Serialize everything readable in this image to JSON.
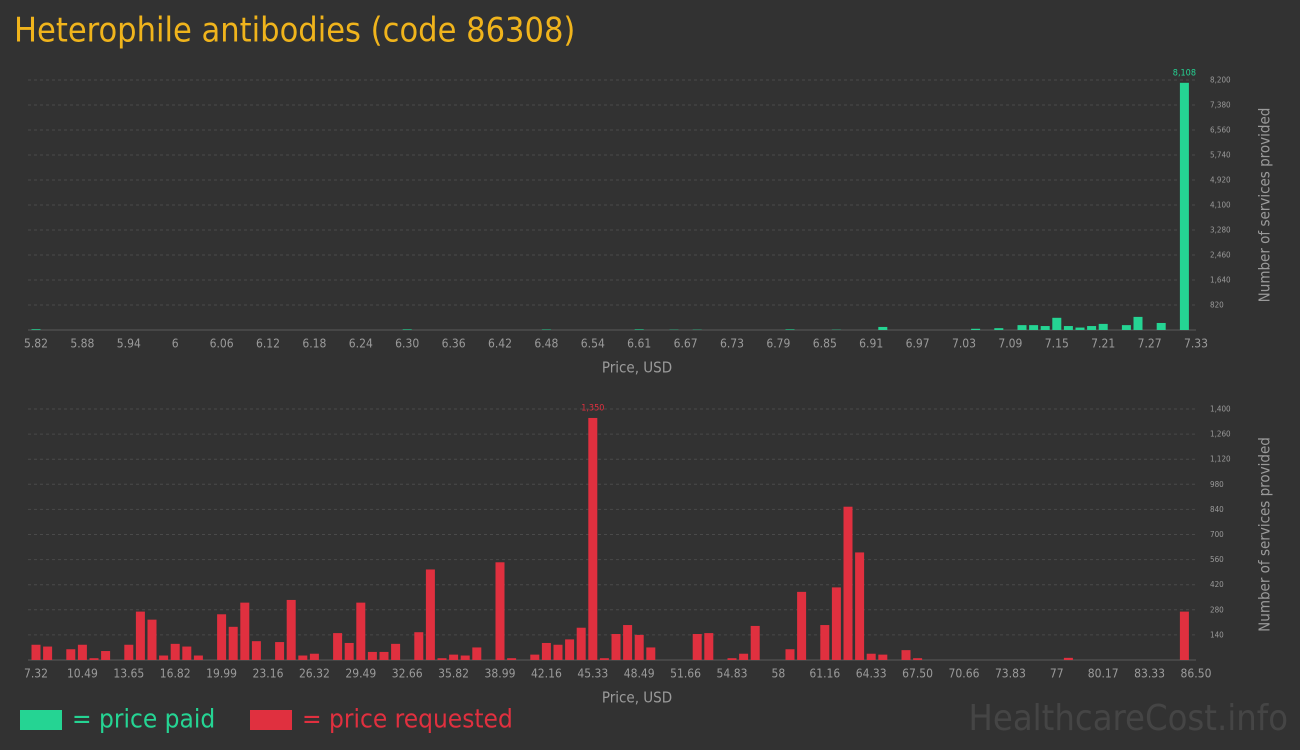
{
  "chart_data": [
    {
      "type": "bar",
      "title": "Heterophile antibodies (code 86308)",
      "x_label": "Price, USD",
      "y_label": "Number of services provided",
      "categories": [
        "5.82",
        null,
        null,
        null,
        "5.88",
        null,
        null,
        null,
        "5.94",
        null,
        null,
        null,
        "6",
        null,
        null,
        null,
        "6.06",
        null,
        null,
        null,
        "6.12",
        null,
        null,
        null,
        "6.18",
        null,
        null,
        null,
        "6.24",
        null,
        null,
        null,
        "6.30",
        null,
        null,
        null,
        "6.36",
        null,
        null,
        null,
        "6.42",
        null,
        null,
        null,
        "6.48",
        null,
        null,
        null,
        "6.54",
        null,
        null,
        null,
        "6.61",
        null,
        null,
        null,
        "6.67",
        null,
        null,
        null,
        "6.73",
        null,
        null,
        null,
        "6.79",
        null,
        null,
        null,
        "6.85",
        null,
        null,
        null,
        "6.91",
        null,
        null,
        null,
        "6.97",
        null,
        null,
        null,
        "7.03",
        null,
        null,
        null,
        "7.09",
        null,
        null,
        null,
        "7.15",
        null,
        null,
        null,
        "7.21",
        null,
        null,
        null,
        "7.27",
        null,
        null,
        null,
        "7.33"
      ],
      "series": [
        {
          "name": "= price paid",
          "color": "#25d493",
          "values": [
            25,
            0,
            0,
            0,
            0,
            0,
            0,
            0,
            0,
            0,
            0,
            0,
            0,
            0,
            0,
            0,
            0,
            0,
            0,
            0,
            0,
            0,
            0,
            0,
            0,
            0,
            0,
            0,
            0,
            0,
            0,
            0,
            20,
            0,
            0,
            0,
            0,
            0,
            0,
            0,
            0,
            0,
            0,
            0,
            15,
            0,
            0,
            0,
            0,
            0,
            0,
            0,
            20,
            0,
            0,
            10,
            0,
            10,
            0,
            0,
            0,
            0,
            0,
            0,
            0,
            20,
            0,
            0,
            0,
            10,
            0,
            0,
            0,
            100,
            0,
            0,
            0,
            0,
            0,
            0,
            0,
            40,
            0,
            60,
            0,
            160,
            160,
            130,
            400,
            130,
            80,
            130,
            200,
            0,
            160,
            430,
            0,
            230,
            0,
            8108,
            0
          ],
          "value_labels": [
            null,
            null,
            null,
            null,
            null,
            null,
            null,
            null,
            null,
            null,
            null,
            null,
            null,
            null,
            null,
            null,
            null,
            null,
            null,
            null,
            null,
            null,
            null,
            null,
            null,
            null,
            null,
            null,
            null,
            null,
            null,
            null,
            null,
            null,
            null,
            null,
            null,
            null,
            null,
            null,
            null,
            null,
            null,
            null,
            null,
            null,
            null,
            null,
            null,
            null,
            null,
            null,
            null,
            null,
            null,
            null,
            null,
            null,
            null,
            null,
            null,
            null,
            null,
            null,
            null,
            null,
            null,
            null,
            null,
            null,
            null,
            null,
            null,
            null,
            null,
            null,
            null,
            null,
            null,
            null,
            null,
            null,
            null,
            null,
            null,
            null,
            null,
            null,
            null,
            null,
            null,
            null,
            null,
            null,
            null,
            null,
            null,
            null,
            null,
            "8,108",
            null
          ]
        }
      ],
      "ylim": [
        0,
        8200
      ],
      "yticks": [
        820,
        {
          "value": 1640,
          "label": "1,640"
        },
        {
          "value": 2460,
          "label": "2,460"
        },
        {
          "value": 3280,
          "label": "3,280"
        },
        {
          "value": 4100,
          "label": "4,100"
        },
        {
          "value": 4920,
          "label": "4,920"
        },
        {
          "value": 5740,
          "label": "5,740"
        },
        {
          "value": 6560,
          "label": "6,560"
        },
        {
          "value": 7380,
          "label": "7,380"
        },
        {
          "value": 8200,
          "label": "8,200"
        }
      ],
      "grid": true
    },
    {
      "type": "bar",
      "x_label": "Price, USD",
      "y_label": "Number of services provided",
      "categories": [
        "7.32",
        null,
        null,
        null,
        "10.49",
        null,
        null,
        null,
        "13.65",
        null,
        null,
        null,
        "16.82",
        null,
        null,
        null,
        "19.99",
        null,
        null,
        null,
        "23.16",
        null,
        null,
        null,
        "26.32",
        null,
        null,
        null,
        "29.49",
        null,
        null,
        null,
        "32.66",
        null,
        null,
        null,
        "35.82",
        null,
        null,
        null,
        "38.99",
        null,
        null,
        null,
        "42.16",
        null,
        null,
        null,
        "45.33",
        null,
        null,
        null,
        "48.49",
        null,
        null,
        null,
        "51.66",
        null,
        null,
        null,
        "54.83",
        null,
        null,
        null,
        "58",
        null,
        null,
        null,
        "61.16",
        null,
        null,
        null,
        "64.33",
        null,
        null,
        null,
        "67.50",
        null,
        null,
        null,
        "70.66",
        null,
        null,
        null,
        "73.83",
        null,
        null,
        null,
        "77",
        null,
        null,
        null,
        "80.17",
        null,
        null,
        null,
        "83.33",
        null,
        null,
        null,
        "86.50"
      ],
      "series": [
        {
          "name": "= price requested",
          "color": "#e0303f",
          "values": [
            85,
            75,
            0,
            60,
            85,
            10,
            50,
            0,
            85,
            270,
            225,
            25,
            90,
            75,
            25,
            0,
            255,
            185,
            320,
            105,
            0,
            100,
            335,
            25,
            35,
            0,
            150,
            95,
            320,
            45,
            45,
            90,
            0,
            155,
            505,
            10,
            30,
            25,
            70,
            0,
            545,
            10,
            0,
            30,
            95,
            85,
            115,
            180,
            1350,
            10,
            145,
            195,
            140,
            70,
            0,
            0,
            0,
            145,
            150,
            0,
            10,
            35,
            190,
            0,
            0,
            60,
            380,
            0,
            195,
            405,
            855,
            600,
            35,
            30,
            0,
            55,
            10,
            0,
            0,
            0,
            0,
            0,
            0,
            0,
            0,
            0,
            0,
            0,
            0,
            12,
            0,
            0,
            0,
            0,
            0,
            0,
            0,
            0,
            0,
            270,
            0
          ],
          "value_labels": [
            null,
            null,
            null,
            null,
            null,
            null,
            null,
            null,
            null,
            null,
            null,
            null,
            null,
            null,
            null,
            null,
            null,
            null,
            null,
            null,
            null,
            null,
            null,
            null,
            null,
            null,
            null,
            null,
            null,
            null,
            null,
            null,
            null,
            null,
            null,
            null,
            null,
            null,
            null,
            null,
            null,
            null,
            null,
            null,
            null,
            null,
            null,
            null,
            "1,350",
            null,
            null,
            null,
            null,
            null,
            null,
            null,
            null,
            null,
            null,
            null,
            null,
            null,
            null,
            null,
            null,
            null,
            null,
            null,
            null,
            null,
            null,
            null,
            null,
            null,
            null,
            null,
            null,
            null,
            null,
            null,
            null,
            null,
            null,
            null,
            null,
            null,
            null,
            null,
            null,
            null,
            null,
            null,
            null,
            null,
            null,
            null,
            null,
            null,
            null,
            null,
            null
          ]
        }
      ],
      "ylim": [
        0,
        1400
      ],
      "yticks": [
        140,
        280,
        420,
        560,
        700,
        840,
        980,
        {
          "value": 1120,
          "label": "1,120"
        },
        {
          "value": 1260,
          "label": "1,260"
        },
        {
          "value": 1400,
          "label": "1,400"
        }
      ],
      "grid": true
    }
  ],
  "watermark": "HealthcareCost.info"
}
